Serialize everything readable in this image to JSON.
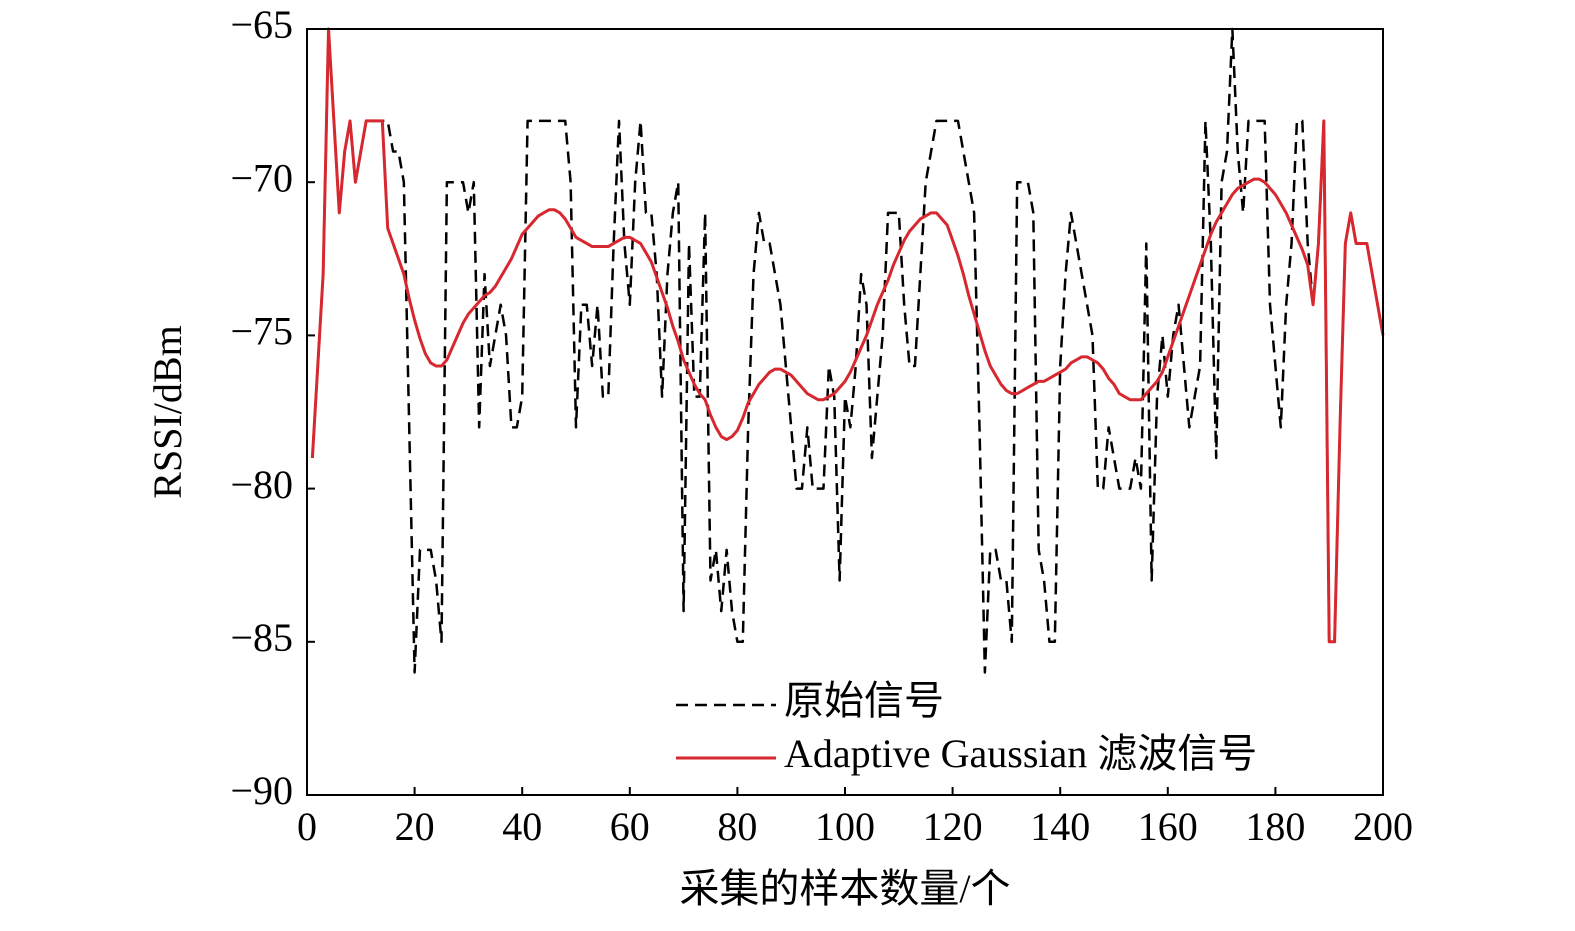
{
  "chart_data": {
    "type": "line",
    "xlabel": "采集的样本数量/个",
    "ylabel": "RSSI/dBm",
    "xlim": [
      0,
      200
    ],
    "xticks": [
      0,
      20,
      40,
      60,
      80,
      100,
      120,
      140,
      160,
      180,
      200
    ],
    "ylim": [
      -90,
      -65
    ],
    "yticks": [
      {
        "value": -90,
        "label": "−90"
      },
      {
        "value": -85,
        "label": "−85"
      },
      {
        "value": -80,
        "label": "−80"
      },
      {
        "value": -75,
        "label": "−75"
      },
      {
        "value": -70,
        "label": "−70"
      },
      {
        "value": -65,
        "label": "−65"
      }
    ],
    "legend_loc": "lower center",
    "x": [
      1,
      2,
      3,
      4,
      5,
      6,
      7,
      8,
      9,
      10,
      11,
      12,
      13,
      14,
      15,
      16,
      17,
      18,
      19,
      20,
      21,
      22,
      23,
      24,
      25,
      26,
      27,
      28,
      29,
      30,
      31,
      32,
      33,
      34,
      35,
      36,
      37,
      38,
      39,
      40,
      41,
      42,
      43,
      44,
      45,
      46,
      47,
      48,
      49,
      50,
      51,
      52,
      53,
      54,
      55,
      56,
      57,
      58,
      59,
      60,
      61,
      62,
      63,
      64,
      65,
      66,
      67,
      68,
      69,
      70,
      71,
      72,
      73,
      74,
      75,
      76,
      77,
      78,
      79,
      80,
      81,
      82,
      83,
      84,
      85,
      86,
      87,
      88,
      89,
      90,
      91,
      92,
      93,
      94,
      95,
      96,
      97,
      98,
      99,
      100,
      101,
      102,
      103,
      104,
      105,
      106,
      107,
      108,
      109,
      110,
      111,
      112,
      113,
      114,
      115,
      116,
      117,
      118,
      119,
      120,
      121,
      122,
      123,
      124,
      125,
      126,
      127,
      128,
      129,
      130,
      131,
      132,
      133,
      134,
      135,
      136,
      137,
      138,
      139,
      140,
      141,
      142,
      143,
      144,
      145,
      146,
      147,
      148,
      149,
      150,
      151,
      152,
      153,
      154,
      155,
      156,
      157,
      158,
      159,
      160,
      161,
      162,
      163,
      164,
      165,
      166,
      167,
      168,
      169,
      170,
      171,
      172,
      173,
      174,
      175,
      176,
      177,
      178,
      179,
      180,
      181,
      182,
      183,
      184,
      185,
      186,
      187,
      188,
      189,
      190,
      191,
      192,
      193,
      194,
      195,
      196,
      197,
      198,
      199,
      200
    ],
    "series": [
      {
        "name": "原始信号",
        "color": "#000000",
        "dash": true,
        "values": [
          -79,
          -76,
          -73,
          -65,
          -68,
          -71,
          -69,
          -68,
          -70,
          -69,
          -68,
          -68,
          -68,
          -68,
          -68,
          -69,
          -69,
          -70,
          -78,
          -86,
          -82,
          -82,
          -82,
          -83,
          -85,
          -70,
          -70,
          -70,
          -70,
          -71,
          -70,
          -78,
          -73,
          -76,
          -75,
          -74,
          -75,
          -78,
          -78,
          -77,
          -68,
          -68,
          -68,
          -68,
          -68,
          -68,
          -68,
          -68,
          -70,
          -78,
          -74,
          -74,
          -76,
          -74,
          -77,
          -77,
          -72,
          -68,
          -72,
          -74,
          -70,
          -68,
          -71,
          -71,
          -73,
          -77,
          -73,
          -71,
          -70,
          -84,
          -72,
          -77,
          -77,
          -71,
          -83,
          -82,
          -84,
          -82,
          -84,
          -85,
          -85,
          -78,
          -73,
          -71,
          -72,
          -72,
          -73,
          -74,
          -76,
          -78,
          -80,
          -80,
          -78,
          -80,
          -80,
          -80,
          -76,
          -77,
          -83,
          -77,
          -78,
          -76,
          -73,
          -74,
          -79,
          -77,
          -75,
          -71,
          -71,
          -71,
          -74,
          -76,
          -76,
          -73,
          -70,
          -69,
          -68,
          -68,
          -68,
          -68,
          -68,
          -69,
          -70,
          -71,
          -78,
          -86,
          -82,
          -82,
          -83,
          -83,
          -85,
          -70,
          -70,
          -70,
          -71,
          -82,
          -83,
          -85,
          -85,
          -76,
          -73,
          -71,
          -72,
          -73,
          -74,
          -75,
          -80,
          -80,
          -78,
          -79,
          -80,
          -80,
          -80,
          -79,
          -80,
          -72,
          -83,
          -77,
          -75,
          -77,
          -75,
          -74,
          -76,
          -78,
          -77,
          -76,
          -68,
          -72,
          -79,
          -70,
          -69,
          -65,
          -69,
          -71,
          -68,
          -68,
          -68,
          -68,
          -74,
          -76,
          -78,
          -74,
          -72,
          -68,
          -68,
          -72,
          -74,
          -72,
          -68,
          -85,
          -85,
          -78,
          -72,
          -71,
          -72,
          -72,
          -72,
          -73,
          -74,
          -75
        ]
      },
      {
        "name": "Adaptive Gaussian 滤波信号",
        "color": "#d7282f",
        "dash": false,
        "values": [
          -79,
          -76,
          -73,
          -65,
          -68,
          -71,
          -69,
          -68,
          -70,
          -69,
          -68,
          -68,
          -68,
          -68,
          -71.5,
          -72,
          -72.5,
          -73,
          -73.8,
          -74.5,
          -75.1,
          -75.6,
          -75.9,
          -76,
          -76,
          -75.8,
          -75.4,
          -75,
          -74.6,
          -74.3,
          -74.1,
          -73.9,
          -73.7,
          -73.6,
          -73.4,
          -73.1,
          -72.8,
          -72.5,
          -72.1,
          -71.7,
          -71.5,
          -71.3,
          -71.1,
          -71,
          -70.9,
          -70.9,
          -71,
          -71.2,
          -71.5,
          -71.8,
          -71.9,
          -72,
          -72.1,
          -72.1,
          -72.1,
          -72.1,
          -72,
          -71.9,
          -71.8,
          -71.8,
          -71.9,
          -72,
          -72.3,
          -72.6,
          -73.1,
          -73.6,
          -74.1,
          -74.7,
          -75.2,
          -75.8,
          -76.2,
          -76.6,
          -76.9,
          -77.1,
          -77.6,
          -78,
          -78.3,
          -78.4,
          -78.3,
          -78.1,
          -77.7,
          -77.2,
          -76.9,
          -76.6,
          -76.4,
          -76.2,
          -76.1,
          -76.1,
          -76.2,
          -76.3,
          -76.5,
          -76.7,
          -76.9,
          -77,
          -77.1,
          -77.1,
          -77,
          -76.9,
          -76.7,
          -76.5,
          -76.2,
          -75.8,
          -75.4,
          -75,
          -74.5,
          -74,
          -73.6,
          -73.2,
          -72.7,
          -72.3,
          -71.9,
          -71.6,
          -71.4,
          -71.2,
          -71.1,
          -71,
          -71,
          -71.2,
          -71.4,
          -71.9,
          -72.4,
          -73,
          -73.7,
          -74.3,
          -74.9,
          -75.5,
          -76,
          -76.3,
          -76.6,
          -76.8,
          -76.9,
          -76.9,
          -76.8,
          -76.7,
          -76.6,
          -76.5,
          -76.5,
          -76.4,
          -76.3,
          -76.2,
          -76.1,
          -75.9,
          -75.8,
          -75.7,
          -75.7,
          -75.8,
          -75.9,
          -76.1,
          -76.4,
          -76.6,
          -76.9,
          -77,
          -77.1,
          -77.1,
          -77.1,
          -76.9,
          -76.7,
          -76.5,
          -76.2,
          -75.7,
          -75.2,
          -74.7,
          -74.2,
          -73.7,
          -73.2,
          -72.7,
          -72.2,
          -71.7,
          -71.3,
          -71,
          -70.7,
          -70.4,
          -70.2,
          -70.1,
          -70,
          -69.9,
          -69.9,
          -70,
          -70.2,
          -70.4,
          -70.7,
          -71,
          -71.4,
          -71.8,
          -72.2,
          -72.7,
          -74,
          -72,
          -68,
          -85,
          -85,
          -78,
          -72,
          -71,
          -72,
          -72,
          -72,
          -73,
          -74,
          -75
        ]
      }
    ]
  }
}
